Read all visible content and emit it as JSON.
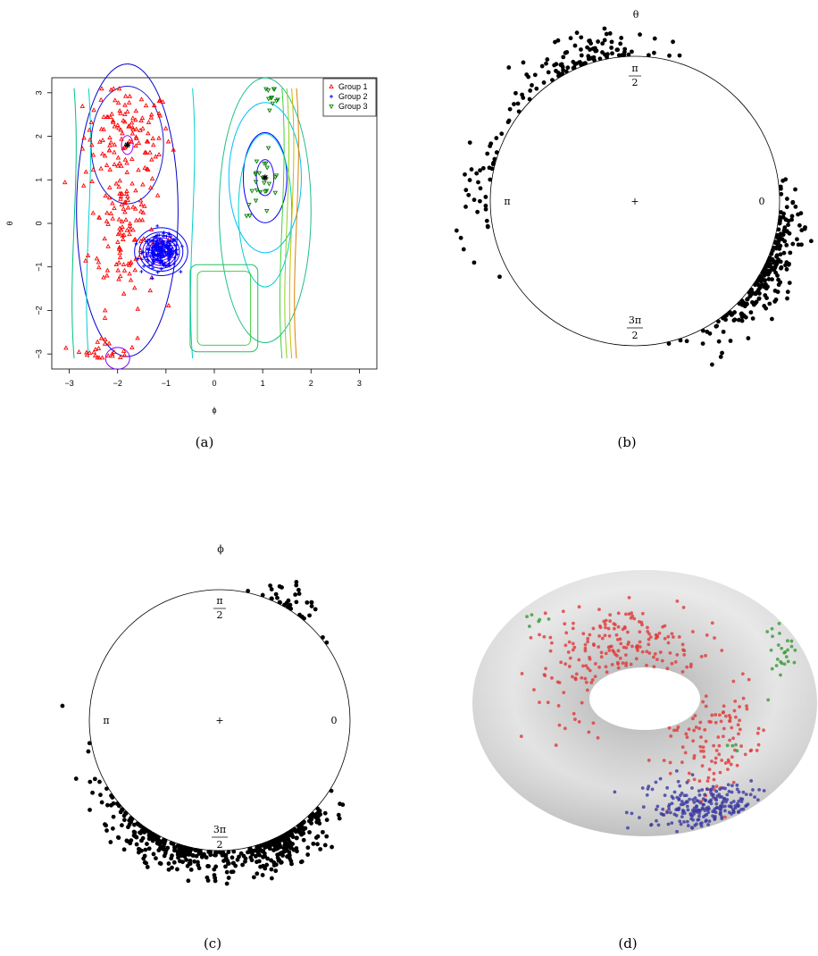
{
  "captions": {
    "a": "(a)",
    "b": "(b)",
    "c": "(c)",
    "d": "(d)"
  },
  "chart_data": [
    {
      "panel": "a",
      "type": "scatter",
      "xlabel": "ϕ",
      "ylabel": "θ",
      "xlim": [
        -3.14,
        3.14
      ],
      "ylim": [
        -3.14,
        3.14
      ],
      "xticks": [
        "−3",
        "−2",
        "−1",
        "0",
        "1",
        "2",
        "3"
      ],
      "yticks": [
        "−3",
        "−2",
        "−1",
        "0",
        "1",
        "2",
        "3"
      ],
      "legend_position": "top-right",
      "contours": true,
      "series": [
        {
          "name": "Group 1",
          "marker": "triangle-up",
          "color": "#ff0000",
          "count": 260,
          "clusters": [
            {
              "cx": -1.8,
              "cy": 2.0,
              "sx": 0.45,
              "sy": 0.55,
              "w": 0.45
            },
            {
              "cx": -1.9,
              "cy": -0.1,
              "sx": 0.35,
              "sy": 0.9,
              "w": 0.45
            },
            {
              "cx": -2.2,
              "cy": -2.9,
              "sx": 0.3,
              "sy": 0.15,
              "w": 0.1
            }
          ]
        },
        {
          "name": "Group 2",
          "marker": "plus",
          "color": "#0000ff",
          "count": 230,
          "clusters": [
            {
              "cx": -1.1,
              "cy": -0.65,
              "sx": 0.18,
              "sy": 0.18,
              "w": 1.0
            }
          ]
        },
        {
          "name": "Group 3",
          "marker": "triangle-down",
          "color": "#008000",
          "count": 36,
          "clusters": [
            {
              "cx": 1.0,
              "cy": 0.9,
              "sx": 0.2,
              "sy": 0.35,
              "w": 0.7
            },
            {
              "cx": 1.2,
              "cy": 3.0,
              "sx": 0.1,
              "sy": 0.1,
              "w": 0.3
            }
          ]
        }
      ],
      "centers": [
        {
          "x": -1.8,
          "y": 1.8
        },
        {
          "x": 1.05,
          "y": 1.05
        }
      ]
    },
    {
      "panel": "b",
      "type": "circular",
      "title": "θ",
      "labels": {
        "top": "π",
        "top_den": "2",
        "left": "π",
        "right": "0",
        "bottom": "3π",
        "bottom_den": "2",
        "center": "+"
      },
      "density_arcs_deg": [
        {
          "mean": 110,
          "spread": 16,
          "count": 110
        },
        {
          "mean": -30,
          "spread": 16,
          "count": 220
        },
        {
          "mean": 175,
          "spread": 15,
          "count": 40
        }
      ]
    },
    {
      "panel": "c",
      "type": "circular",
      "title": "ϕ",
      "labels": {
        "top": "π",
        "top_den": "2",
        "left": "π",
        "right": "0",
        "bottom": "3π",
        "bottom_den": "2",
        "center": "+"
      },
      "density_arcs_deg": [
        {
          "mean": -110,
          "spread": 20,
          "count": 260
        },
        {
          "mean": -62,
          "spread": 10,
          "count": 230
        },
        {
          "mean": 60,
          "spread": 8,
          "count": 36
        }
      ]
    },
    {
      "panel": "d",
      "type": "scatter",
      "surface": "torus",
      "series": [
        {
          "name": "",
          "color": "#e03a3a",
          "count": 320
        },
        {
          "name": "",
          "color": "#3a3aa0",
          "count": 230
        },
        {
          "name": "",
          "color": "#3a9a3a",
          "count": 36
        }
      ]
    }
  ]
}
